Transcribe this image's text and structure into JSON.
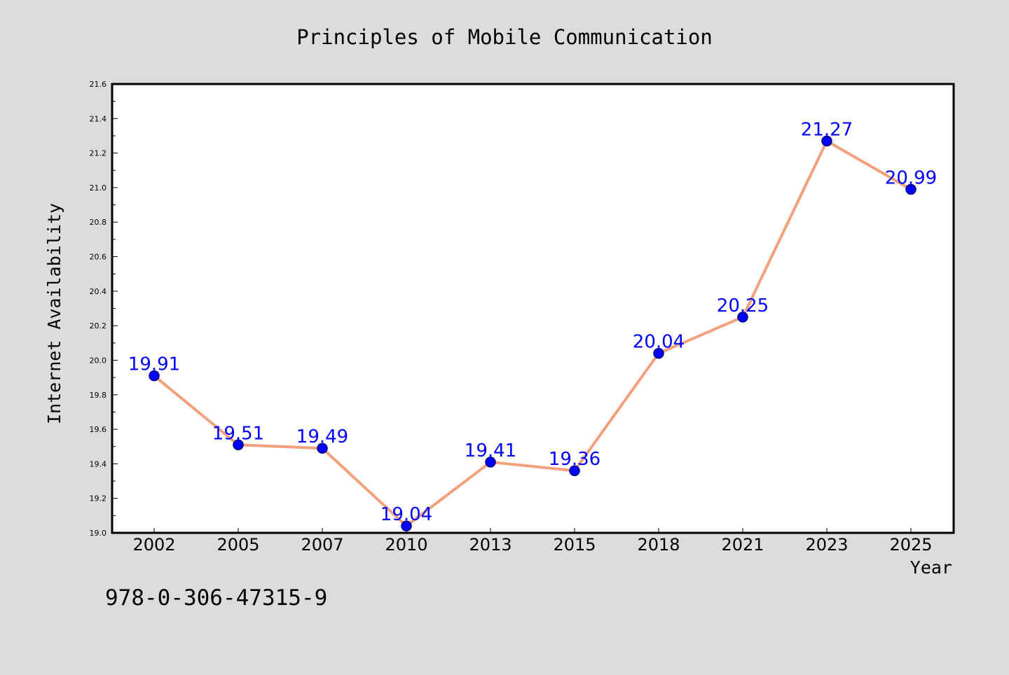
{
  "chart_data": {
    "type": "line",
    "title": "Principles of Mobile Communication",
    "xlabel": "Year",
    "ylabel": "Internet Availability",
    "categories": [
      "2002",
      "2005",
      "2007",
      "2010",
      "2013",
      "2015",
      "2018",
      "2021",
      "2023",
      "2025"
    ],
    "series": [
      {
        "values": [
          19.91,
          19.51,
          19.49,
          19.04,
          19.41,
          19.36,
          20.04,
          20.25,
          21.27,
          20.99
        ]
      }
    ],
    "data_labels": [
      "19.91",
      "19.51",
      "19.49",
      "19.04",
      "19.41",
      "19.36",
      "20.04",
      "20.25",
      "21.27",
      "20.99"
    ],
    "ylim": [
      19.0,
      21.6
    ],
    "y_ticks": [
      "19.0",
      "19.2",
      "19.4",
      "19.6",
      "19.8",
      "20.0",
      "20.2",
      "20.4",
      "20.6",
      "20.8",
      "21.0",
      "21.2",
      "21.4",
      "21.6"
    ],
    "grid": false,
    "legend": "none",
    "colors": {
      "line": "#f4a07c",
      "marker": "#0000ff",
      "marker_edge": "#00007a",
      "data_label": "#0000ff",
      "background": "#dcdcdc",
      "plot_background": "#ffffff"
    }
  },
  "annotation": "978-0-306-47315-9"
}
